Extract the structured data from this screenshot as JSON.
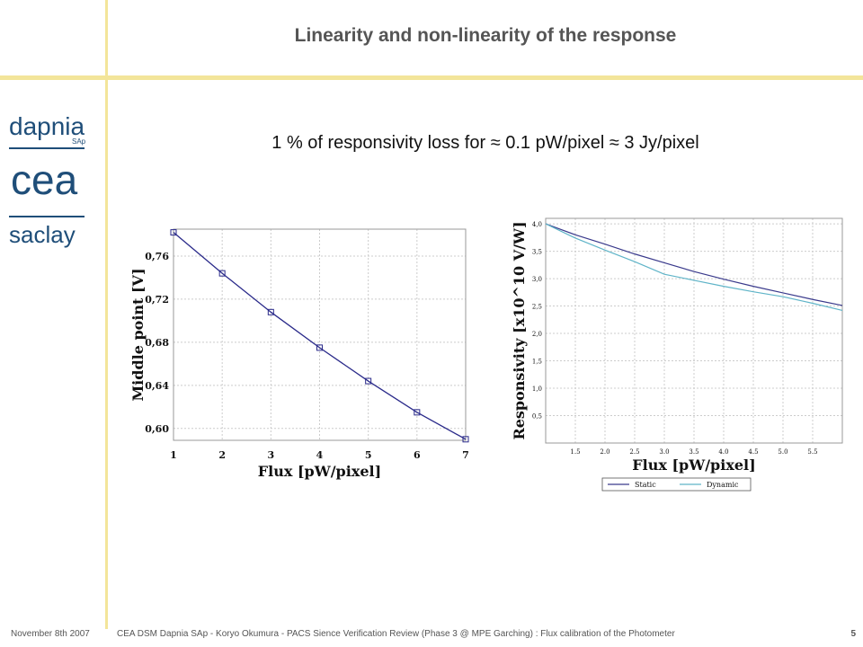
{
  "slide": {
    "title": "Linearity and non-linearity of the response",
    "subtitle": "1 % of responsivity loss for ≈ 0.1 pW/pixel ≈ 3 Jy/pixel",
    "logo": {
      "line1": "dapnia",
      "line1_sub": "SAp",
      "line2": "cea",
      "line3": "saclay"
    },
    "footer": {
      "date": "November 8th 2007",
      "center": "CEA DSM Dapnia SAp  - Koryo Okumura -  PACS Sience Verification Review (Phase 3 @ MPE Garching) : Flux calibration of the Photometer",
      "page": "5"
    },
    "colors": {
      "accent": "#f3e59a",
      "static": "#3a3a8c",
      "dynamic": "#5fb4c8",
      "series": "#2a2a8a"
    }
  },
  "chart_data": [
    {
      "type": "line",
      "xlabel": "Flux [pW/pixel]",
      "ylabel": "Middle point [V]",
      "xlim": [
        1,
        7
      ],
      "ylim": [
        0.589,
        0.785
      ],
      "xticks": [
        "1",
        "2",
        "3",
        "4",
        "5",
        "6",
        "7"
      ],
      "yticks": [
        "0,76",
        "0,72",
        "0,68",
        "0,64",
        "0,60"
      ],
      "ytick_values": [
        0.76,
        0.72,
        0.68,
        0.64,
        0.6
      ],
      "grid": true,
      "markers": "square",
      "series": [
        {
          "x": [
            1,
            2,
            3,
            4,
            5,
            6,
            7
          ],
          "y": [
            0.782,
            0.744,
            0.708,
            0.675,
            0.644,
            0.615,
            0.59
          ]
        }
      ]
    },
    {
      "type": "line",
      "xlabel": "Flux [pW/pixel]",
      "ylabel": "Responsivity [x10^10 V/W]",
      "xlim": [
        1.0,
        6.0
      ],
      "ylim": [
        0.0,
        4.1
      ],
      "xticks": [
        "1.5",
        "2.0",
        "2.5",
        "3.0",
        "3.5",
        "4.0",
        "4.5",
        "5.0",
        "5.5"
      ],
      "xtick_values": [
        1.5,
        2.0,
        2.5,
        3.0,
        3.5,
        4.0,
        4.5,
        5.0,
        5.5
      ],
      "yticks": [
        "4,0",
        "3,5",
        "3,0",
        "2,5",
        "2,0",
        "1,5",
        "1,0",
        "0,5"
      ],
      "ytick_values": [
        4.0,
        3.5,
        3.0,
        2.5,
        2.0,
        1.5,
        1.0,
        0.5
      ],
      "grid": true,
      "legend": "bottom",
      "series": [
        {
          "name": "Static",
          "x": [
            1.0,
            1.5,
            2.0,
            2.5,
            3.0,
            3.5,
            4.0,
            4.5,
            5.0,
            5.5,
            6.0
          ],
          "y": [
            4.0,
            3.8,
            3.63,
            3.45,
            3.29,
            3.13,
            2.99,
            2.86,
            2.74,
            2.62,
            2.51
          ]
        },
        {
          "name": "Dynamic",
          "x": [
            1.0,
            1.5,
            2.0,
            2.5,
            3.0,
            3.5,
            4.0,
            4.5,
            5.0,
            5.5,
            6.0
          ],
          "y": [
            4.0,
            3.74,
            3.52,
            3.31,
            3.08,
            2.97,
            2.86,
            2.76,
            2.67,
            2.55,
            2.42
          ]
        }
      ]
    }
  ]
}
